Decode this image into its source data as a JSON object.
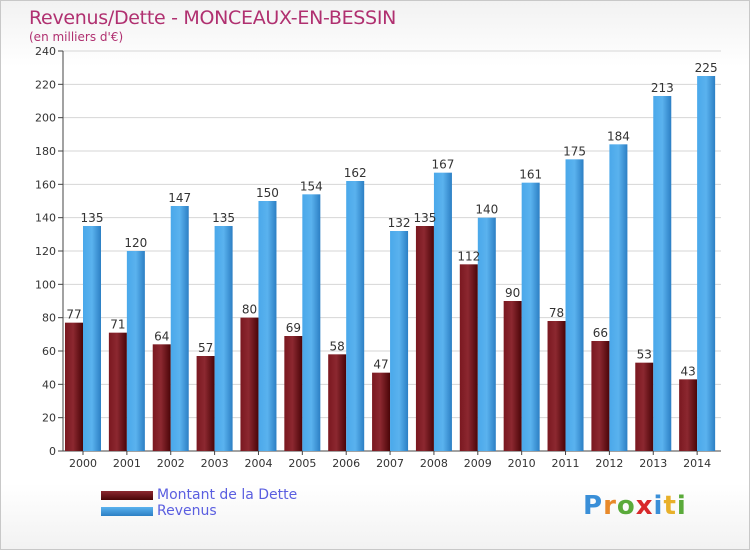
{
  "title": "Revenus/Dette - MONCEAUX-EN-BESSIN",
  "subtitle": "(en milliers d'€)",
  "logo": "Proxiti",
  "colors": {
    "dette": "#6a0f18",
    "revenus": "#3a96dc",
    "title": "#b03070",
    "legend_text": "#5a5ee0"
  },
  "chart_data": {
    "type": "bar",
    "categories": [
      "2000",
      "2001",
      "2002",
      "2003",
      "2004",
      "2005",
      "2006",
      "2007",
      "2008",
      "2009",
      "2010",
      "2011",
      "2012",
      "2013",
      "2014"
    ],
    "series": [
      {
        "name": "Montant de la Dette",
        "values": [
          77,
          71,
          64,
          57,
          80,
          69,
          58,
          47,
          135,
          112,
          90,
          78,
          66,
          53,
          43
        ]
      },
      {
        "name": "Revenus",
        "values": [
          135,
          120,
          147,
          135,
          150,
          154,
          162,
          132,
          167,
          140,
          161,
          175,
          184,
          213,
          225
        ]
      }
    ],
    "ylim": [
      0,
      240
    ],
    "yticks": [
      0,
      20,
      40,
      60,
      80,
      100,
      120,
      140,
      160,
      180,
      200,
      220,
      240
    ],
    "grid": true,
    "legend": "bottom-left"
  }
}
